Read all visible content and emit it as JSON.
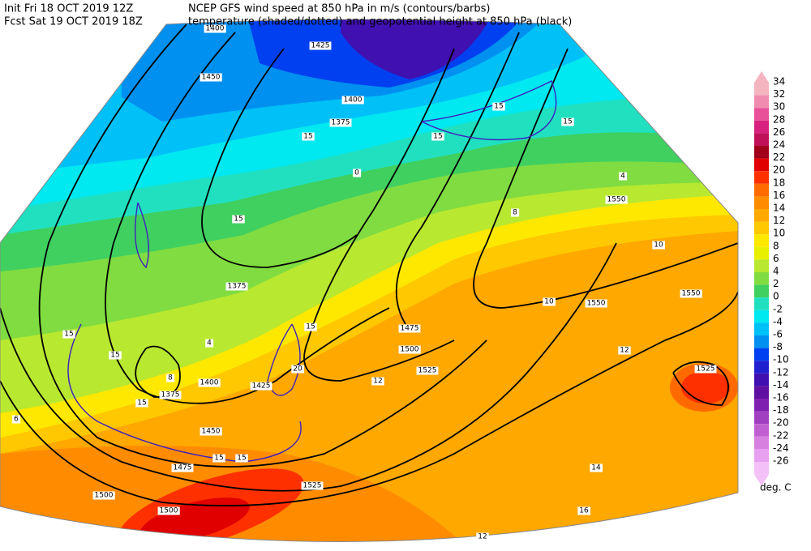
{
  "header": {
    "init": "Init  Fri 18 OCT 2019 12Z",
    "fcst": "Fcst Sat 19 OCT 2019 18Z",
    "title1": "NCEP GFS wind speed at 850 hPa in m/s (contours/barbs)",
    "title2": "temperature (shaded/dotted) and geopotential height at 850 hPa (black)"
  },
  "colorbar": {
    "ticks": [
      34,
      32,
      30,
      28,
      26,
      24,
      22,
      20,
      18,
      16,
      14,
      12,
      10,
      8,
      6,
      4,
      2,
      0,
      -2,
      -4,
      -6,
      -8,
      -10,
      -12,
      -14,
      -16,
      -18,
      -20,
      -22,
      -24,
      -26
    ],
    "colors": [
      "#f4b4c0",
      "#f08cb0",
      "#e8509a",
      "#d8207e",
      "#c0105a",
      "#a00018",
      "#e00000",
      "#ff3000",
      "#ff6a00",
      "#ff8c00",
      "#ffa800",
      "#ffc800",
      "#ffe800",
      "#e8f000",
      "#b8e830",
      "#80dc40",
      "#40d060",
      "#20e0c0",
      "#00e8f0",
      "#00c0f8",
      "#0090f0",
      "#0040f0",
      "#2020d0",
      "#4010b0",
      "#6010a0",
      "#8020b0",
      "#a040c0",
      "#c060d0",
      "#d880e0",
      "#e8a0f0",
      "#f4c0f8"
    ],
    "unit": "deg. C"
  },
  "height_labels": [
    1400,
    1425,
    1450,
    1400,
    1375,
    1375,
    1550,
    1550,
    1550,
    1475,
    1500,
    1525,
    1525,
    1400,
    1425,
    1375,
    1450,
    1475,
    1500,
    1500,
    1525
  ],
  "wind_labels": [
    15,
    15,
    15,
    15,
    15,
    15,
    15,
    15,
    15,
    15,
    15,
    20
  ],
  "temp_labels": [
    0,
    4,
    8,
    10,
    12,
    14,
    16,
    12,
    4,
    6,
    8,
    10,
    12
  ]
}
